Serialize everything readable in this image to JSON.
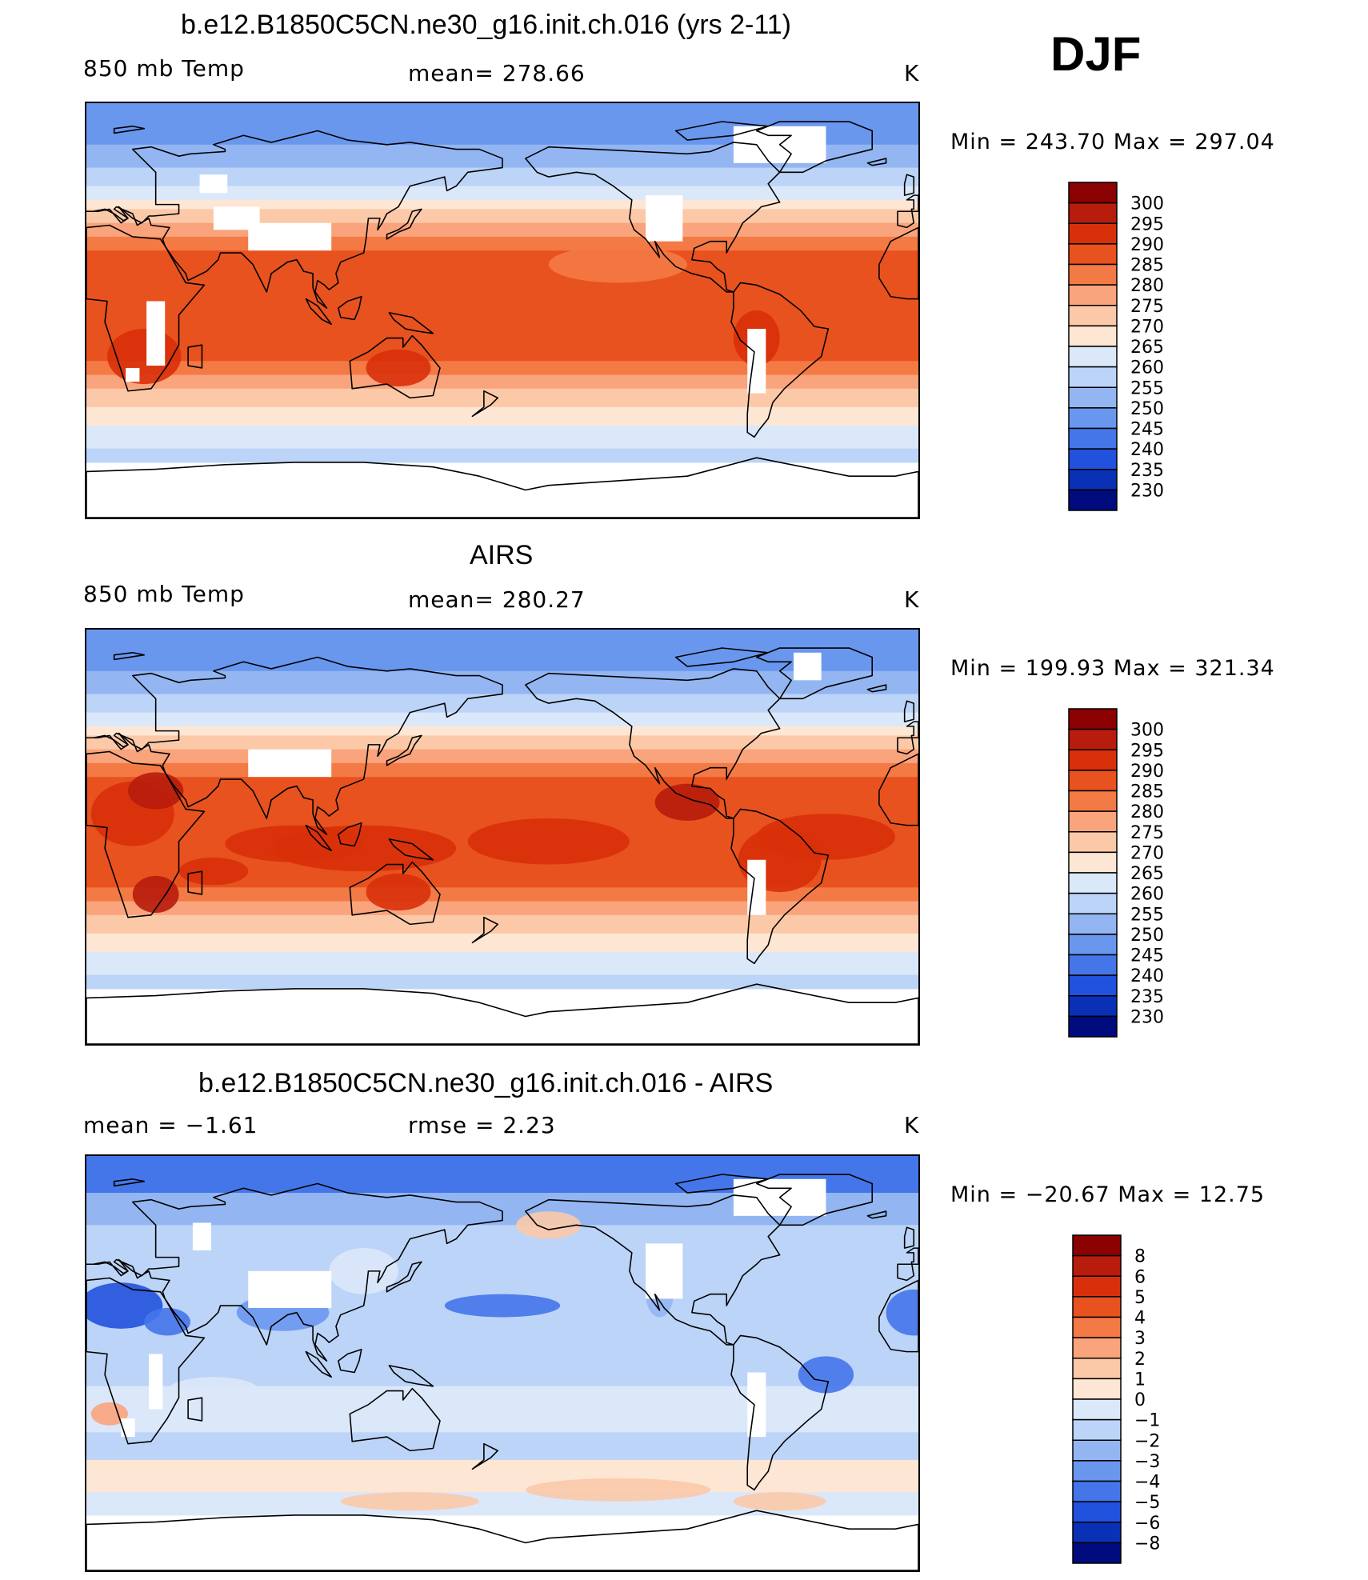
{
  "season": "DJF",
  "panels": [
    {
      "title": "b.e12.B1850C5CN.ne30_g16.init.ch.016 (yrs 2-11)",
      "left_label": "850 mb Temp",
      "center_label": "mean=  278.66",
      "units": "K",
      "minmax": "Min  =  243.70  Max  =  297.04",
      "field": "model",
      "colorbar": {
        "levels": [
          "300",
          "295",
          "290",
          "285",
          "280",
          "275",
          "270",
          "265",
          "260",
          "255",
          "250",
          "245",
          "240",
          "235",
          "230"
        ],
        "colors": [
          "#8b0000",
          "#b71c0c",
          "#d8300a",
          "#e8521f",
          "#f47a45",
          "#f9a47c",
          "#fbc9a8",
          "#fde6d3",
          "#dbe8fa",
          "#bcd4f7",
          "#93b6f2",
          "#6a97ee",
          "#4476ea",
          "#2152dd",
          "#0a30b5",
          "#000c7d"
        ]
      }
    },
    {
      "title": "AIRS",
      "left_label": "850 mb Temp",
      "center_label": "mean=  280.27",
      "units": "K",
      "minmax": "Min  =  199.93  Max  =  321.34",
      "field": "obs",
      "colorbar": {
        "levels": [
          "300",
          "295",
          "290",
          "285",
          "280",
          "275",
          "270",
          "265",
          "260",
          "255",
          "250",
          "245",
          "240",
          "235",
          "230"
        ],
        "colors": [
          "#8b0000",
          "#b71c0c",
          "#d8300a",
          "#e8521f",
          "#f47a45",
          "#f9a47c",
          "#fbc9a8",
          "#fde6d3",
          "#dbe8fa",
          "#bcd4f7",
          "#93b6f2",
          "#6a97ee",
          "#4476ea",
          "#2152dd",
          "#0a30b5",
          "#000c7d"
        ]
      }
    },
    {
      "title": "b.e12.B1850C5CN.ne30_g16.init.ch.016 - AIRS",
      "left_label": "mean =    −1.61",
      "center_label": "rmse  =     2.23",
      "units": "K",
      "minmax": "Min  =  −20.67  Max  =    12.75",
      "field": "diff",
      "colorbar": {
        "levels": [
          "8",
          "6",
          "5",
          "4",
          "3",
          "2",
          "1",
          "0",
          "−1",
          "−2",
          "−3",
          "−4",
          "−5",
          "−6",
          "−8"
        ],
        "colors": [
          "#8b0000",
          "#b71c0c",
          "#d8300a",
          "#e8521f",
          "#f47a45",
          "#f9a47c",
          "#fbc9a8",
          "#fde6d3",
          "#dbe8fa",
          "#bcd4f7",
          "#93b6f2",
          "#6a97ee",
          "#4476ea",
          "#2152dd",
          "#0a30b5",
          "#000c7d"
        ]
      }
    }
  ]
}
